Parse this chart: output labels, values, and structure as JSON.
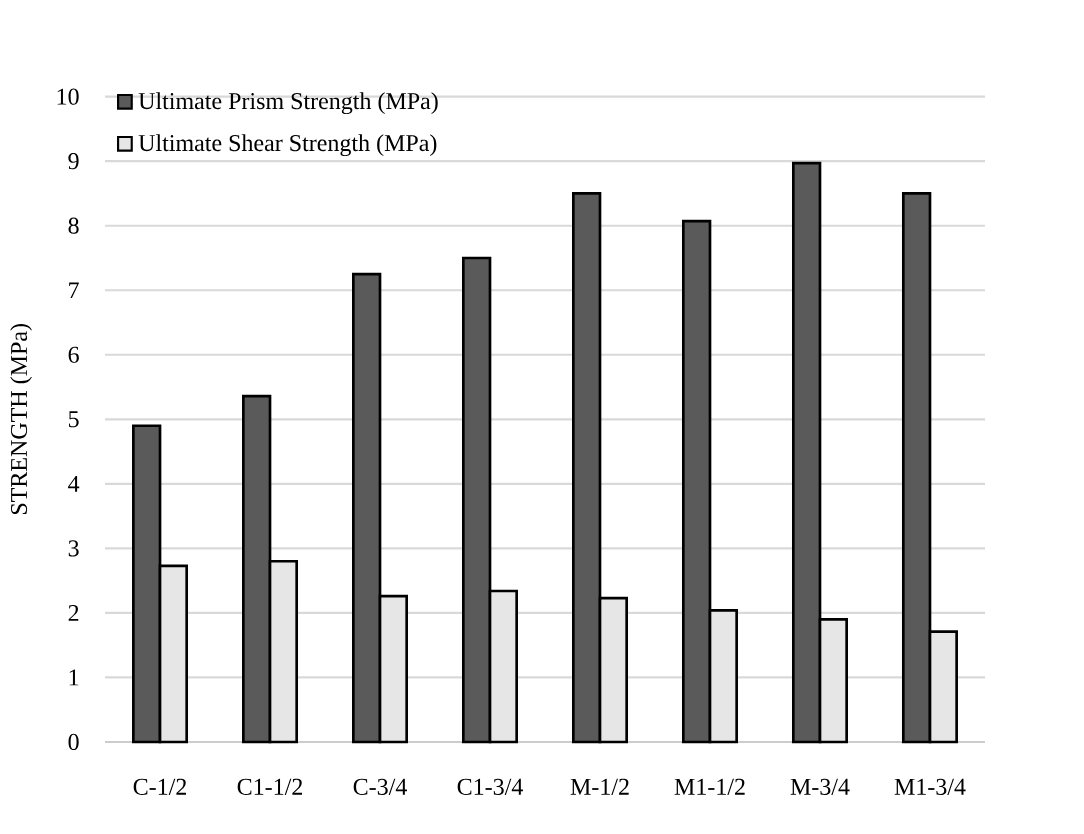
{
  "chart_data": {
    "type": "bar",
    "ylabel": "STRENGTH (MPa)",
    "categories": [
      "C-1/2",
      "C1-1/2",
      "C-3/4",
      "C1-3/4",
      "M-1/2",
      "M1-1/2",
      "M-3/4",
      "M1-3/4"
    ],
    "series": [
      {
        "name": "Ultimate Prism Strength (MPa)",
        "color": "#5a5a5a",
        "values": [
          4.9,
          5.36,
          7.25,
          7.5,
          8.5,
          8.07,
          8.97,
          8.5
        ]
      },
      {
        "name": "Ultimate Shear Strength (MPa)",
        "color": "#e6e6e6",
        "values": [
          2.73,
          2.8,
          2.26,
          2.34,
          2.23,
          2.04,
          1.9,
          1.71
        ]
      }
    ],
    "ylim": [
      0,
      10
    ],
    "yticks": [
      0,
      1,
      2,
      3,
      4,
      5,
      6,
      7,
      8,
      9,
      10
    ],
    "grid": "y",
    "legend": "top left"
  }
}
